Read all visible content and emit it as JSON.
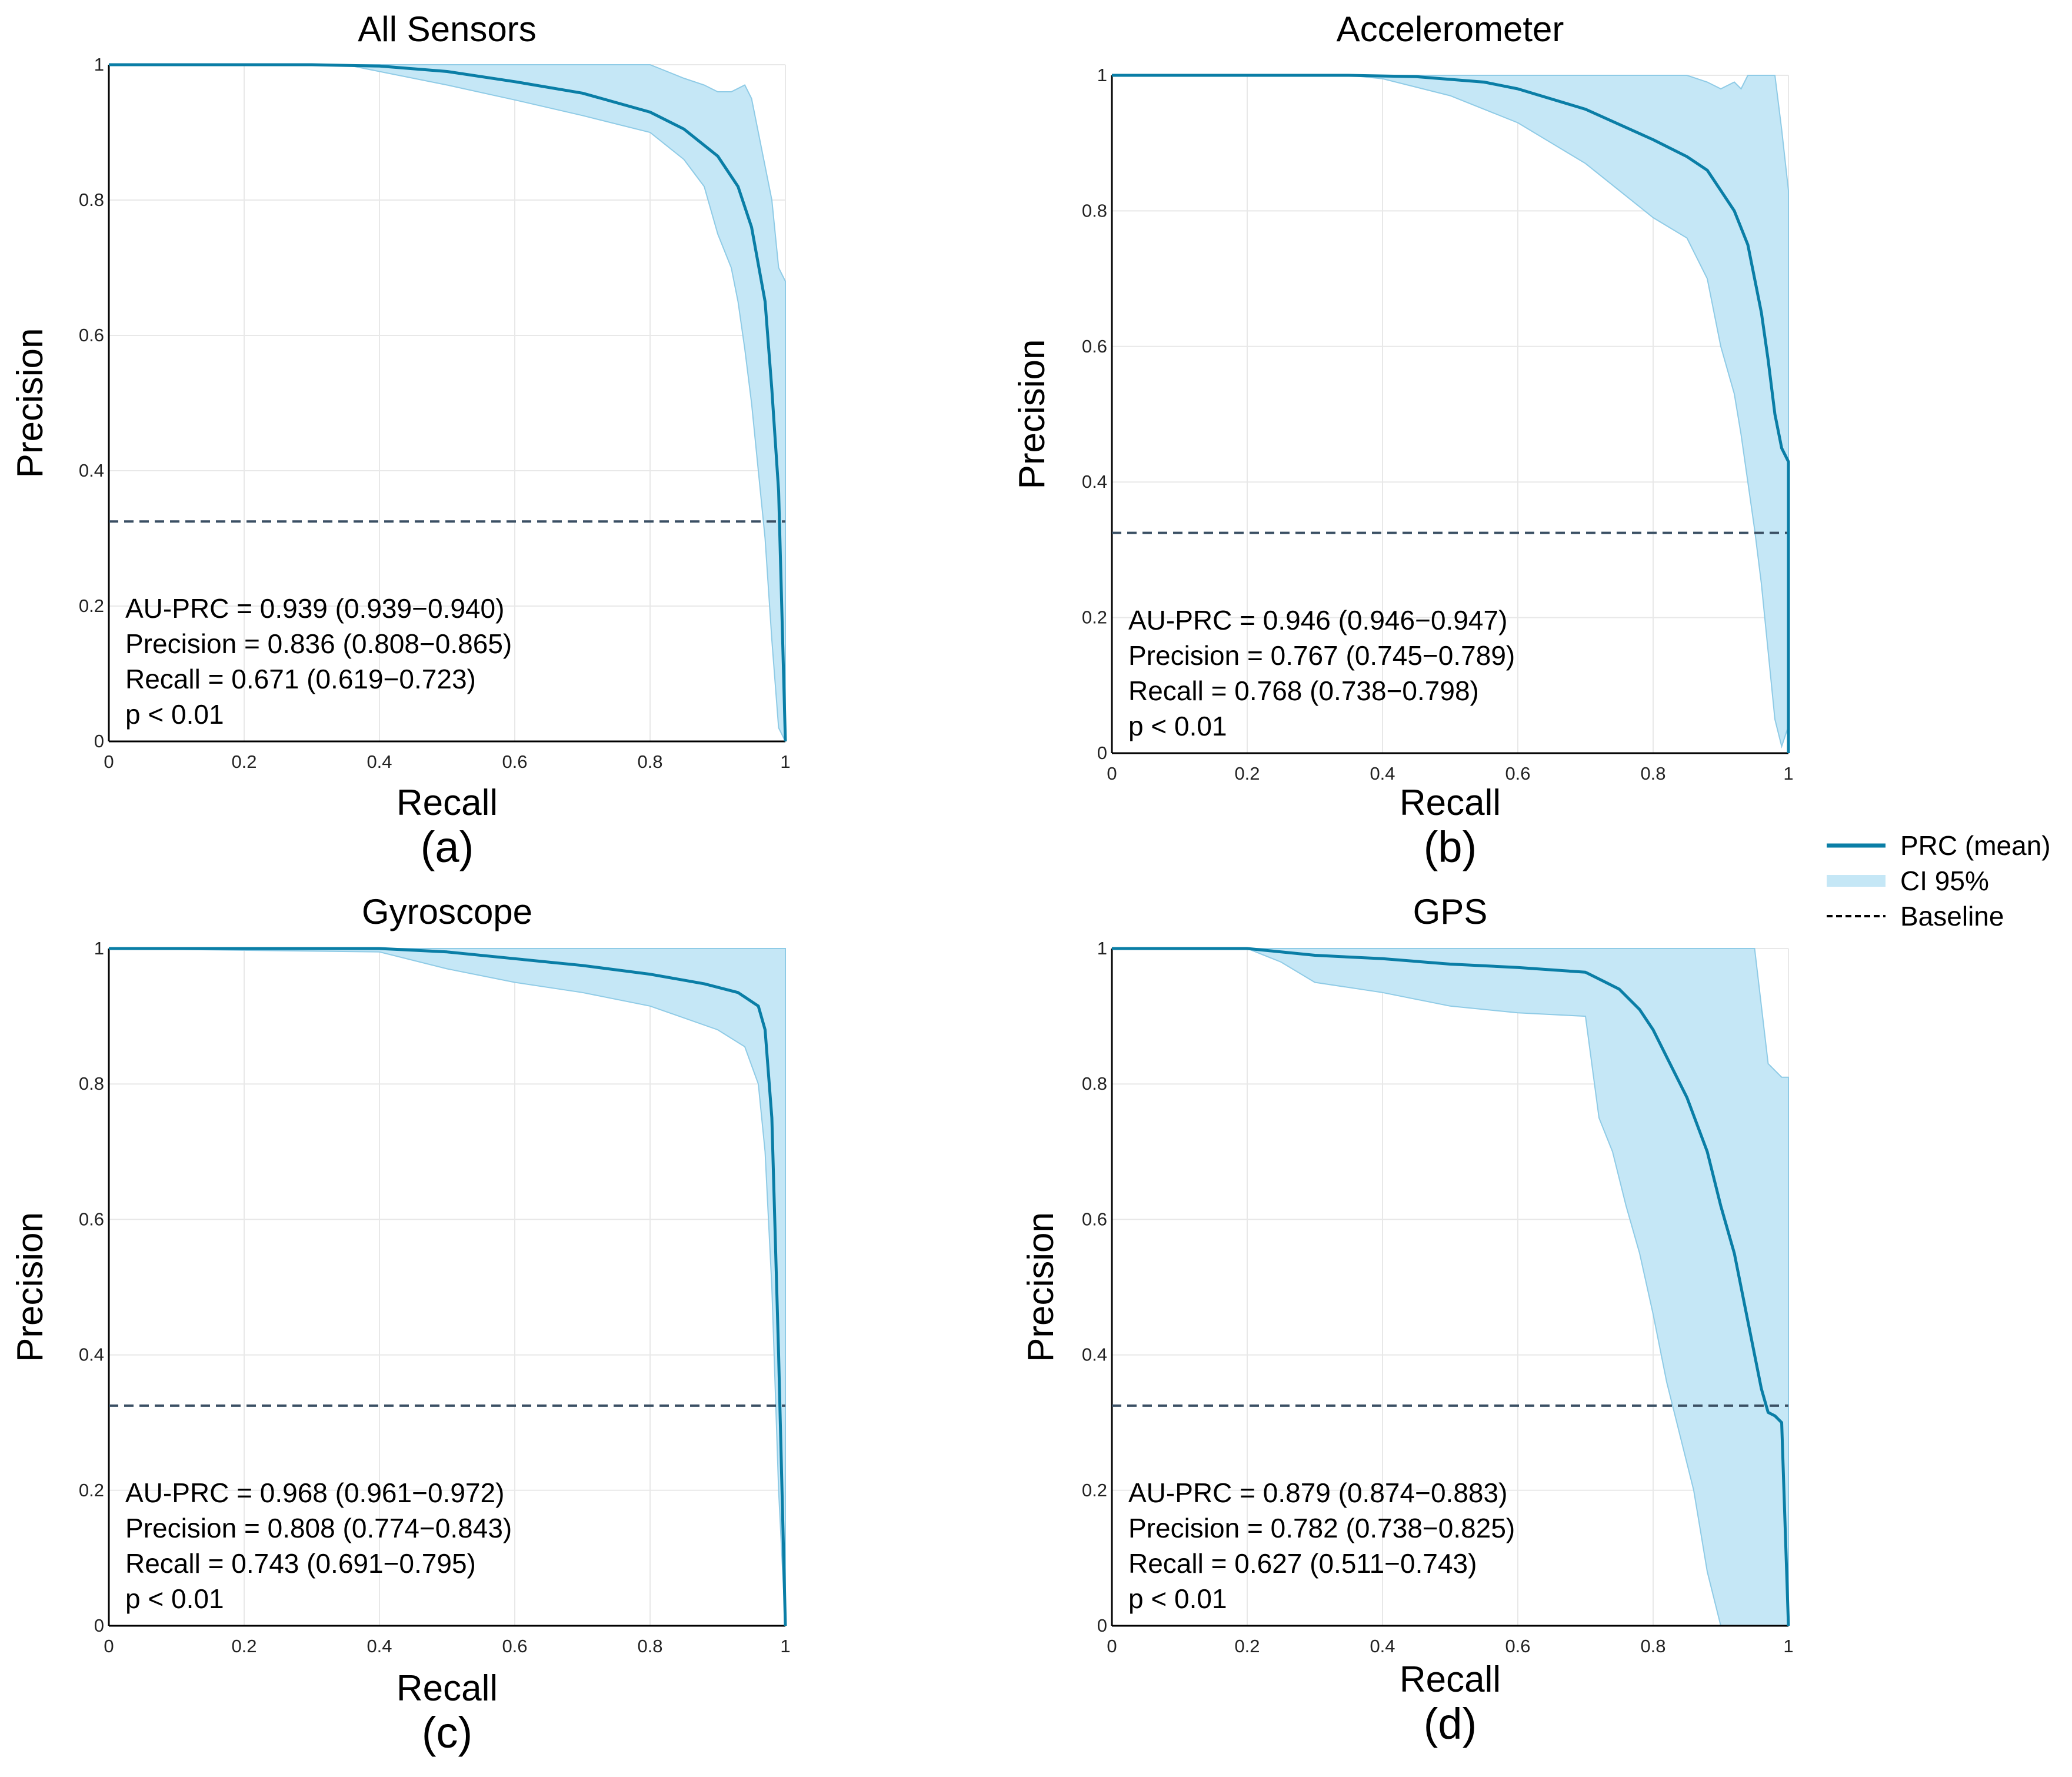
{
  "legend": {
    "items": [
      {
        "label": "PRC (mean)",
        "style": "line",
        "color": "#0a7ea6"
      },
      {
        "label": "CI 95%",
        "style": "band",
        "color": "#c5e7f6"
      },
      {
        "label": "Baseline",
        "style": "dashed",
        "color": "#000000"
      }
    ]
  },
  "colors": {
    "mean_line": "#0a7ea6",
    "ci_fill": "#c5e7f6",
    "ci_edge": "#8fcbe6",
    "baseline": "#3a4f63",
    "grid": "#e8e8e8"
  },
  "chart_data": [
    {
      "type": "line",
      "title": "All Sensors",
      "caption": "(a)",
      "xlabel": "Recall",
      "ylabel": "Precision",
      "xlim": [
        0,
        1
      ],
      "ylim": [
        0,
        1
      ],
      "xticks": [
        "0",
        "0.2",
        "0.4",
        "0.6",
        "0.8",
        "1"
      ],
      "yticks": [
        "0",
        "0.2",
        "0.4",
        "0.6",
        "0.8",
        "1"
      ],
      "grid": true,
      "baseline": 0.325,
      "series": [
        {
          "name": "PRC (mean)",
          "x": [
            0,
            0.3,
            0.4,
            0.5,
            0.6,
            0.7,
            0.8,
            0.85,
            0.9,
            0.93,
            0.95,
            0.97,
            0.98,
            0.99,
            1.0
          ],
          "y": [
            1,
            1,
            0.998,
            0.99,
            0.975,
            0.958,
            0.93,
            0.905,
            0.865,
            0.82,
            0.76,
            0.65,
            0.52,
            0.37,
            0.0
          ]
        },
        {
          "name": "CI 95%",
          "x": [
            0,
            0.35,
            0.4,
            0.5,
            0.6,
            0.7,
            0.8,
            0.85,
            0.88,
            0.9,
            0.92,
            0.93,
            0.94,
            0.95,
            0.96,
            0.97,
            0.98,
            0.99,
            1.0
          ],
          "y_lower": [
            1,
            1,
            0.99,
            0.97,
            0.948,
            0.925,
            0.9,
            0.86,
            0.82,
            0.75,
            0.7,
            0.65,
            0.58,
            0.5,
            0.4,
            0.3,
            0.15,
            0.02,
            0.0
          ],
          "y_upper": [
            1,
            1,
            1,
            1,
            1,
            1,
            1,
            0.98,
            0.97,
            0.96,
            0.96,
            0.965,
            0.97,
            0.95,
            0.9,
            0.85,
            0.8,
            0.7,
            0.68
          ]
        }
      ],
      "annotations": [
        "AU-PRC = 0.939 (0.939−0.940)",
        "Precision = 0.836 (0.808−0.865)",
        "Recall = 0.671 (0.619−0.723)",
        "p < 0.01"
      ]
    },
    {
      "type": "line",
      "title": "Accelerometer",
      "caption": "(b)",
      "xlabel": "Recall",
      "ylabel": "Precision",
      "xlim": [
        0,
        1
      ],
      "ylim": [
        0,
        1
      ],
      "xticks": [
        "0",
        "0.2",
        "0.4",
        "0.6",
        "0.8",
        "1"
      ],
      "yticks": [
        "0",
        "0.2",
        "0.4",
        "0.6",
        "0.8",
        "1"
      ],
      "grid": true,
      "baseline": 0.325,
      "series": [
        {
          "name": "PRC (mean)",
          "x": [
            0,
            0.35,
            0.45,
            0.55,
            0.6,
            0.7,
            0.8,
            0.85,
            0.88,
            0.9,
            0.92,
            0.94,
            0.96,
            0.97,
            0.98,
            0.99,
            1.0,
            1.0
          ],
          "y": [
            1,
            1,
            0.998,
            0.99,
            0.98,
            0.95,
            0.905,
            0.88,
            0.86,
            0.83,
            0.8,
            0.75,
            0.65,
            0.58,
            0.5,
            0.45,
            0.43,
            0.0
          ]
        },
        {
          "name": "CI 95%",
          "x": [
            0,
            0.35,
            0.4,
            0.5,
            0.6,
            0.7,
            0.75,
            0.8,
            0.85,
            0.88,
            0.9,
            0.92,
            0.93,
            0.94,
            0.95,
            0.96,
            0.97,
            0.98,
            0.99,
            1.0
          ],
          "y_lower": [
            1,
            1,
            0.995,
            0.97,
            0.93,
            0.87,
            0.83,
            0.79,
            0.76,
            0.7,
            0.6,
            0.53,
            0.47,
            0.4,
            0.33,
            0.25,
            0.15,
            0.05,
            0.01,
            0.04
          ],
          "y_upper": [
            1,
            1,
            1,
            1,
            1,
            1,
            1,
            1,
            1,
            0.99,
            0.98,
            0.99,
            0.98,
            1,
            1,
            1,
            1,
            1,
            0.92,
            0.83
          ]
        }
      ],
      "annotations": [
        "AU-PRC = 0.946 (0.946−0.947)",
        "Precision = 0.767 (0.745−0.789)",
        "Recall = 0.768 (0.738−0.798)",
        "p < 0.01"
      ]
    },
    {
      "type": "line",
      "title": "Gyroscope",
      "caption": "(c)",
      "xlabel": "Recall",
      "ylabel": "Precision",
      "xlim": [
        0,
        1
      ],
      "ylim": [
        0,
        1
      ],
      "xticks": [
        "0",
        "0.2",
        "0.4",
        "0.6",
        "0.8",
        "1"
      ],
      "yticks": [
        "0",
        "0.2",
        "0.4",
        "0.6",
        "0.8",
        "1"
      ],
      "grid": true,
      "baseline": 0.325,
      "series": [
        {
          "name": "PRC (mean)",
          "x": [
            0,
            0.4,
            0.5,
            0.6,
            0.7,
            0.8,
            0.88,
            0.93,
            0.96,
            0.97,
            0.98,
            0.99,
            1.0
          ],
          "y": [
            1,
            1,
            0.995,
            0.985,
            0.975,
            0.962,
            0.948,
            0.935,
            0.915,
            0.88,
            0.75,
            0.4,
            0.0
          ]
        },
        {
          "name": "CI 95%",
          "x": [
            0,
            0.4,
            0.5,
            0.6,
            0.7,
            0.8,
            0.9,
            0.94,
            0.96,
            0.97,
            0.98,
            0.99,
            1.0
          ],
          "y_lower": [
            1,
            0.995,
            0.97,
            0.95,
            0.935,
            0.915,
            0.88,
            0.855,
            0.8,
            0.7,
            0.5,
            0.2,
            0.0
          ],
          "y_upper": [
            1,
            1,
            1,
            1,
            1,
            1,
            1,
            1,
            1,
            1,
            1,
            1,
            1
          ]
        }
      ],
      "annotations": [
        "AU-PRC = 0.968 (0.961−0.972)",
        "Precision = 0.808 (0.774−0.843)",
        "Recall = 0.743 (0.691−0.795)",
        "p < 0.01"
      ]
    },
    {
      "type": "line",
      "title": "GPS",
      "caption": "(d)",
      "xlabel": "Recall",
      "ylabel": "Precision",
      "xlim": [
        0,
        1
      ],
      "ylim": [
        0,
        1
      ],
      "xticks": [
        "0",
        "0.2",
        "0.4",
        "0.6",
        "0.8",
        "1"
      ],
      "yticks": [
        "0",
        "0.2",
        "0.4",
        "0.6",
        "0.8",
        "1"
      ],
      "grid": true,
      "baseline": 0.325,
      "series": [
        {
          "name": "PRC (mean)",
          "x": [
            0,
            0.2,
            0.3,
            0.4,
            0.5,
            0.6,
            0.7,
            0.73,
            0.75,
            0.78,
            0.8,
            0.82,
            0.85,
            0.88,
            0.9,
            0.92,
            0.94,
            0.96,
            0.97,
            0.98,
            0.99,
            1.0
          ],
          "y": [
            1,
            1,
            0.99,
            0.985,
            0.977,
            0.972,
            0.965,
            0.95,
            0.94,
            0.91,
            0.88,
            0.84,
            0.78,
            0.7,
            0.62,
            0.55,
            0.45,
            0.35,
            0.315,
            0.31,
            0.3,
            0.0
          ]
        },
        {
          "name": "CI 95%",
          "x": [
            0,
            0.2,
            0.25,
            0.3,
            0.4,
            0.5,
            0.6,
            0.7,
            0.72,
            0.74,
            0.76,
            0.78,
            0.8,
            0.82,
            0.84,
            0.86,
            0.88,
            0.9,
            0.95,
            0.97,
            0.98,
            0.99,
            1.0
          ],
          "y_lower": [
            1,
            1,
            0.98,
            0.95,
            0.935,
            0.915,
            0.905,
            0.9,
            0.75,
            0.7,
            0.62,
            0.55,
            0.46,
            0.36,
            0.28,
            0.2,
            0.08,
            0.0,
            0.0,
            0.0,
            0.0,
            0.0,
            0.0
          ],
          "y_upper": [
            1,
            1,
            1,
            1,
            1,
            1,
            1,
            1,
            1,
            1,
            1,
            1,
            1,
            1,
            1,
            1,
            1,
            1,
            1,
            0.83,
            0.82,
            0.81,
            0.81
          ]
        }
      ],
      "annotations": [
        "AU-PRC = 0.879 (0.874−0.883)",
        "Precision = 0.782 (0.738−0.825)",
        "Recall = 0.627 (0.511−0.743)",
        "p < 0.01"
      ]
    }
  ]
}
